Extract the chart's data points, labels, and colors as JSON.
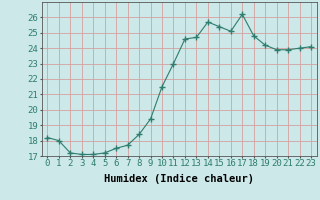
{
  "x": [
    0,
    1,
    2,
    3,
    4,
    5,
    6,
    7,
    8,
    9,
    10,
    11,
    12,
    13,
    14,
    15,
    16,
    17,
    18,
    19,
    20,
    21,
    22,
    23
  ],
  "y": [
    18.2,
    18.0,
    17.2,
    17.1,
    17.1,
    17.2,
    17.5,
    17.7,
    18.4,
    19.4,
    21.5,
    23.0,
    24.6,
    24.7,
    25.7,
    25.4,
    25.1,
    26.2,
    24.8,
    24.2,
    23.9,
    23.9,
    24.0,
    24.1
  ],
  "line_color": "#2e7d6e",
  "marker": "+",
  "marker_size": 4,
  "bg_color": "#cce8e8",
  "grid_color": "#d4a0a0",
  "xlabel": "Humidex (Indice chaleur)",
  "ylabel": "",
  "xlim": [
    -0.5,
    23.5
  ],
  "ylim": [
    17,
    27
  ],
  "yticks": [
    17,
    18,
    19,
    20,
    21,
    22,
    23,
    24,
    25,
    26
  ],
  "xticks": [
    0,
    1,
    2,
    3,
    4,
    5,
    6,
    7,
    8,
    9,
    10,
    11,
    12,
    13,
    14,
    15,
    16,
    17,
    18,
    19,
    20,
    21,
    22,
    23
  ],
  "tick_fontsize": 6.5,
  "xlabel_fontsize": 7.5,
  "spine_color": "#555555"
}
